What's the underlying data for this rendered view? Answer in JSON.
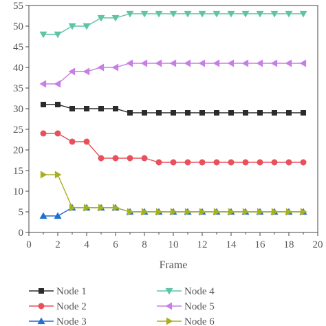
{
  "chart_data": {
    "type": "line",
    "title": "",
    "xlabel": "Frame",
    "ylabel": "",
    "xlim": [
      0,
      20
    ],
    "ylim": [
      0,
      55
    ],
    "xticks": [
      0,
      2,
      4,
      6,
      8,
      10,
      12,
      14,
      16,
      18,
      20
    ],
    "yticks": [
      0,
      5,
      10,
      15,
      20,
      25,
      30,
      35,
      40,
      45,
      50,
      55
    ],
    "xtick_labels": [
      "0",
      "2",
      "4",
      "6",
      "8",
      "10",
      "12",
      "14",
      "16",
      "18",
      "20"
    ],
    "ytick_labels": [
      "0",
      "5",
      "10",
      "15",
      "20",
      "25",
      "30",
      "35",
      "40",
      "45",
      "50",
      "55"
    ],
    "grid": false,
    "legend_position": "bottom",
    "x": [
      1,
      2,
      3,
      4,
      5,
      6,
      7,
      8,
      9,
      10,
      11,
      12,
      13,
      14,
      15,
      16,
      17,
      18,
      19
    ],
    "series": [
      {
        "name": "Node 1",
        "color": "#2b2b2b",
        "marker": "square",
        "values": [
          31,
          31,
          30,
          30,
          30,
          30,
          29,
          29,
          29,
          29,
          29,
          29,
          29,
          29,
          29,
          29,
          29,
          29,
          29
        ]
      },
      {
        "name": "Node 2",
        "color": "#e8505b",
        "marker": "circle",
        "values": [
          24,
          24,
          22,
          22,
          18,
          18,
          18,
          18,
          17,
          17,
          17,
          17,
          17,
          17,
          17,
          17,
          17,
          17,
          17
        ]
      },
      {
        "name": "Node 3",
        "color": "#1f6fd1",
        "marker": "triangle-up",
        "values": [
          4,
          4,
          6,
          6,
          6,
          6,
          5,
          5,
          5,
          5,
          5,
          5,
          5,
          5,
          5,
          5,
          5,
          5,
          5
        ]
      },
      {
        "name": "Node 4",
        "color": "#5ec4a6",
        "marker": "triangle-down",
        "values": [
          48,
          48,
          50,
          50,
          52,
          52,
          53,
          53,
          53,
          53,
          53,
          53,
          53,
          53,
          53,
          53,
          53,
          53,
          53
        ]
      },
      {
        "name": "Node 5",
        "color": "#c77ee6",
        "marker": "triangle-left",
        "values": [
          36,
          36,
          39,
          39,
          40,
          40,
          41,
          41,
          41,
          41,
          41,
          41,
          41,
          41,
          41,
          41,
          41,
          41,
          41
        ]
      },
      {
        "name": "Node 6",
        "color": "#a8b020",
        "marker": "triangle-right",
        "values": [
          14,
          14,
          6,
          6,
          6,
          6,
          5,
          5,
          5,
          5,
          5,
          5,
          5,
          5,
          5,
          5,
          5,
          5,
          5
        ]
      }
    ]
  }
}
